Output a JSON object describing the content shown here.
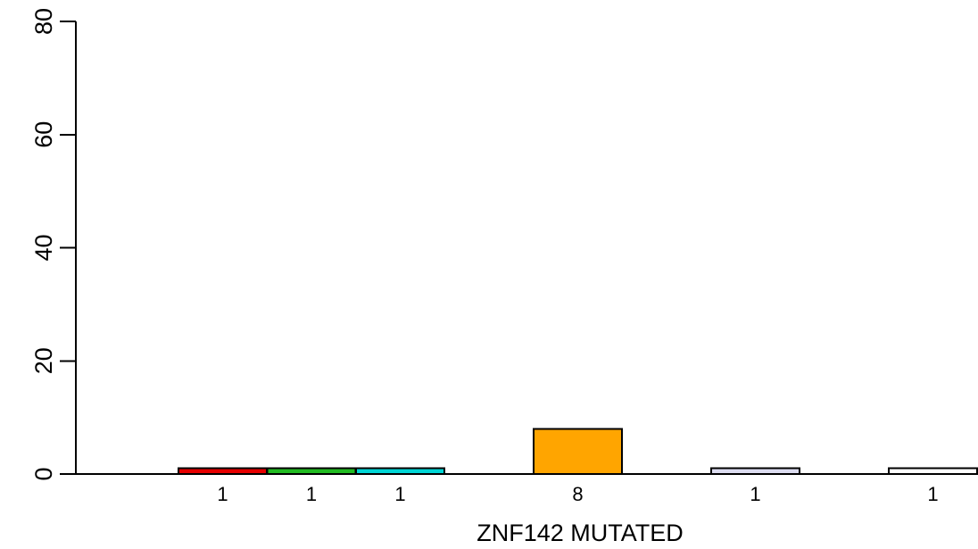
{
  "chart_data": {
    "type": "bar",
    "title": "",
    "xlabel": "ZNF142 MUTATED",
    "ylabel": "",
    "ylim": [
      0,
      80
    ],
    "yticks": [
      0,
      20,
      40,
      60,
      80
    ],
    "ytick_labels": [
      "0",
      "20",
      "40",
      "60",
      "80"
    ],
    "grid": false,
    "legend": "none",
    "categories": [
      "",
      "",
      "",
      "",
      "",
      "",
      "",
      "",
      ""
    ],
    "values": [
      1,
      1,
      1,
      0,
      8,
      0,
      1,
      0,
      1
    ],
    "value_labels": [
      "1",
      "1",
      "1",
      "",
      "8",
      "",
      "1",
      "",
      "1"
    ],
    "colors": [
      "#e60000",
      "#22bb22",
      "#00d5d5",
      "#ffffff",
      "#ffa500",
      "#ffffff",
      "#dcdcf0",
      "#ffffff",
      "#ffffff"
    ]
  }
}
